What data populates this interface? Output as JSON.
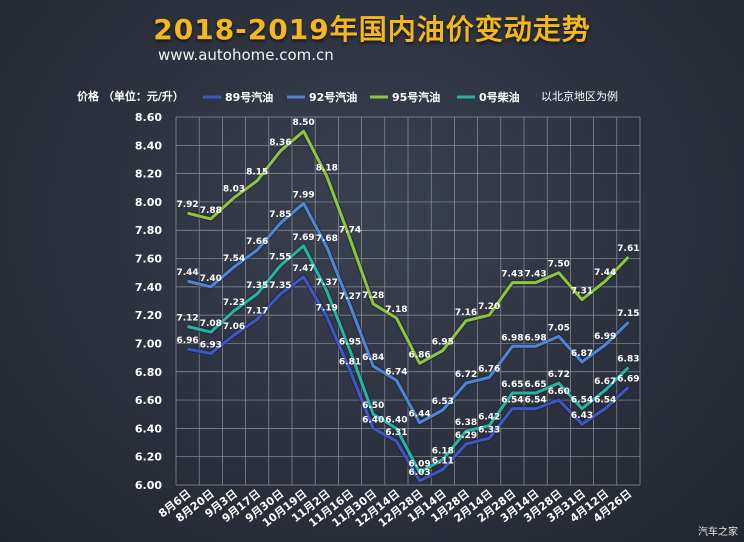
{
  "title": "2018-2019年国内油价变动走势",
  "subtitle": "www.autohome.com.cn",
  "watermark": "汽车之家",
  "chart_data": {
    "type": "line",
    "ylabel": "价格 （单位：元/升）",
    "note": "以北京地区为例",
    "ylim": [
      6.0,
      8.6
    ],
    "yticks": [
      "6.00",
      "6.20",
      "6.40",
      "6.60",
      "6.80",
      "7.00",
      "7.20",
      "7.40",
      "7.60",
      "7.80",
      "8.00",
      "8.20",
      "8.40",
      "8.60"
    ],
    "categories": [
      "8月6日",
      "8月20日",
      "9月3日",
      "9月17日",
      "9月30日",
      "10月19日",
      "11月2日",
      "11月16日",
      "11月30日",
      "12月14日",
      "12月28日",
      "1月14日",
      "1月28日",
      "2月14日",
      "2月28日",
      "3月14日",
      "3月28日",
      "3月31日",
      "4月12日",
      "4月26日"
    ],
    "legend_position": "top",
    "grid": true,
    "series": [
      {
        "name": "89号汽油",
        "color": "#3d56c9",
        "values": [
          6.96,
          6.93,
          7.06,
          7.17,
          7.35,
          7.47,
          7.19,
          6.81,
          6.4,
          6.31,
          6.03,
          6.11,
          6.29,
          6.33,
          6.54,
          6.54,
          6.6,
          6.43,
          6.54,
          6.69
        ],
        "labels": [
          "6.96",
          "6.93",
          "7.06",
          "7.17",
          "7.35",
          "7.47",
          "7.19",
          "6.81",
          "6.40",
          "6.31",
          "6.03",
          "6.11",
          "6.29",
          "6.33",
          "6.54",
          "6.54",
          "6.60",
          "6.43",
          "6.54",
          "6.69"
        ]
      },
      {
        "name": "92号汽油",
        "color": "#4e86d6",
        "values": [
          7.44,
          7.4,
          7.54,
          7.66,
          7.85,
          7.99,
          7.68,
          7.27,
          6.84,
          6.74,
          6.44,
          6.53,
          6.72,
          6.76,
          6.98,
          6.98,
          7.05,
          6.87,
          6.99,
          7.15
        ],
        "labels": [
          "7.44",
          "7.40",
          "7.54",
          "7.66",
          "7.85",
          "7.99",
          "7.68",
          "7.27",
          "6.84",
          "6.74",
          "6.44",
          "6.53",
          "6.72",
          "6.76",
          "6.98",
          "6.98",
          "7.05",
          "6.87",
          "6.99",
          "7.15"
        ]
      },
      {
        "name": "95号汽油",
        "color": "#8cc63f",
        "values": [
          7.92,
          7.88,
          8.03,
          8.15,
          8.36,
          8.5,
          8.18,
          7.74,
          7.28,
          7.18,
          6.86,
          6.95,
          7.16,
          7.2,
          7.43,
          7.43,
          7.5,
          7.31,
          7.44,
          7.61
        ],
        "labels": [
          "7.92",
          "7.88",
          "8.03",
          "8.15",
          "8.36",
          "8.50",
          "8.18",
          "7.74",
          "7.28",
          "7.18",
          "6.86",
          "6.95",
          "7.16",
          "7.20",
          "7.43",
          "7.43",
          "7.50",
          "7.31",
          "7.44",
          "7.61"
        ]
      },
      {
        "name": "0号柴油",
        "color": "#26b3a4",
        "values": [
          7.12,
          7.08,
          7.23,
          7.35,
          7.55,
          7.69,
          7.37,
          6.95,
          6.5,
          6.4,
          6.09,
          6.18,
          6.38,
          6.42,
          6.65,
          6.65,
          6.72,
          6.54,
          6.67,
          6.83
        ],
        "labels": [
          "7.12",
          "7.08",
          "7.23",
          "7.35",
          "7.55",
          "7.69",
          "7.37",
          "6.95",
          "6.50",
          "6.40",
          "6.09",
          "6.18",
          "6.38",
          "6.42",
          "6.65",
          "6.65",
          "6.72",
          "6.54",
          "6.67",
          "6.83"
        ]
      }
    ]
  }
}
